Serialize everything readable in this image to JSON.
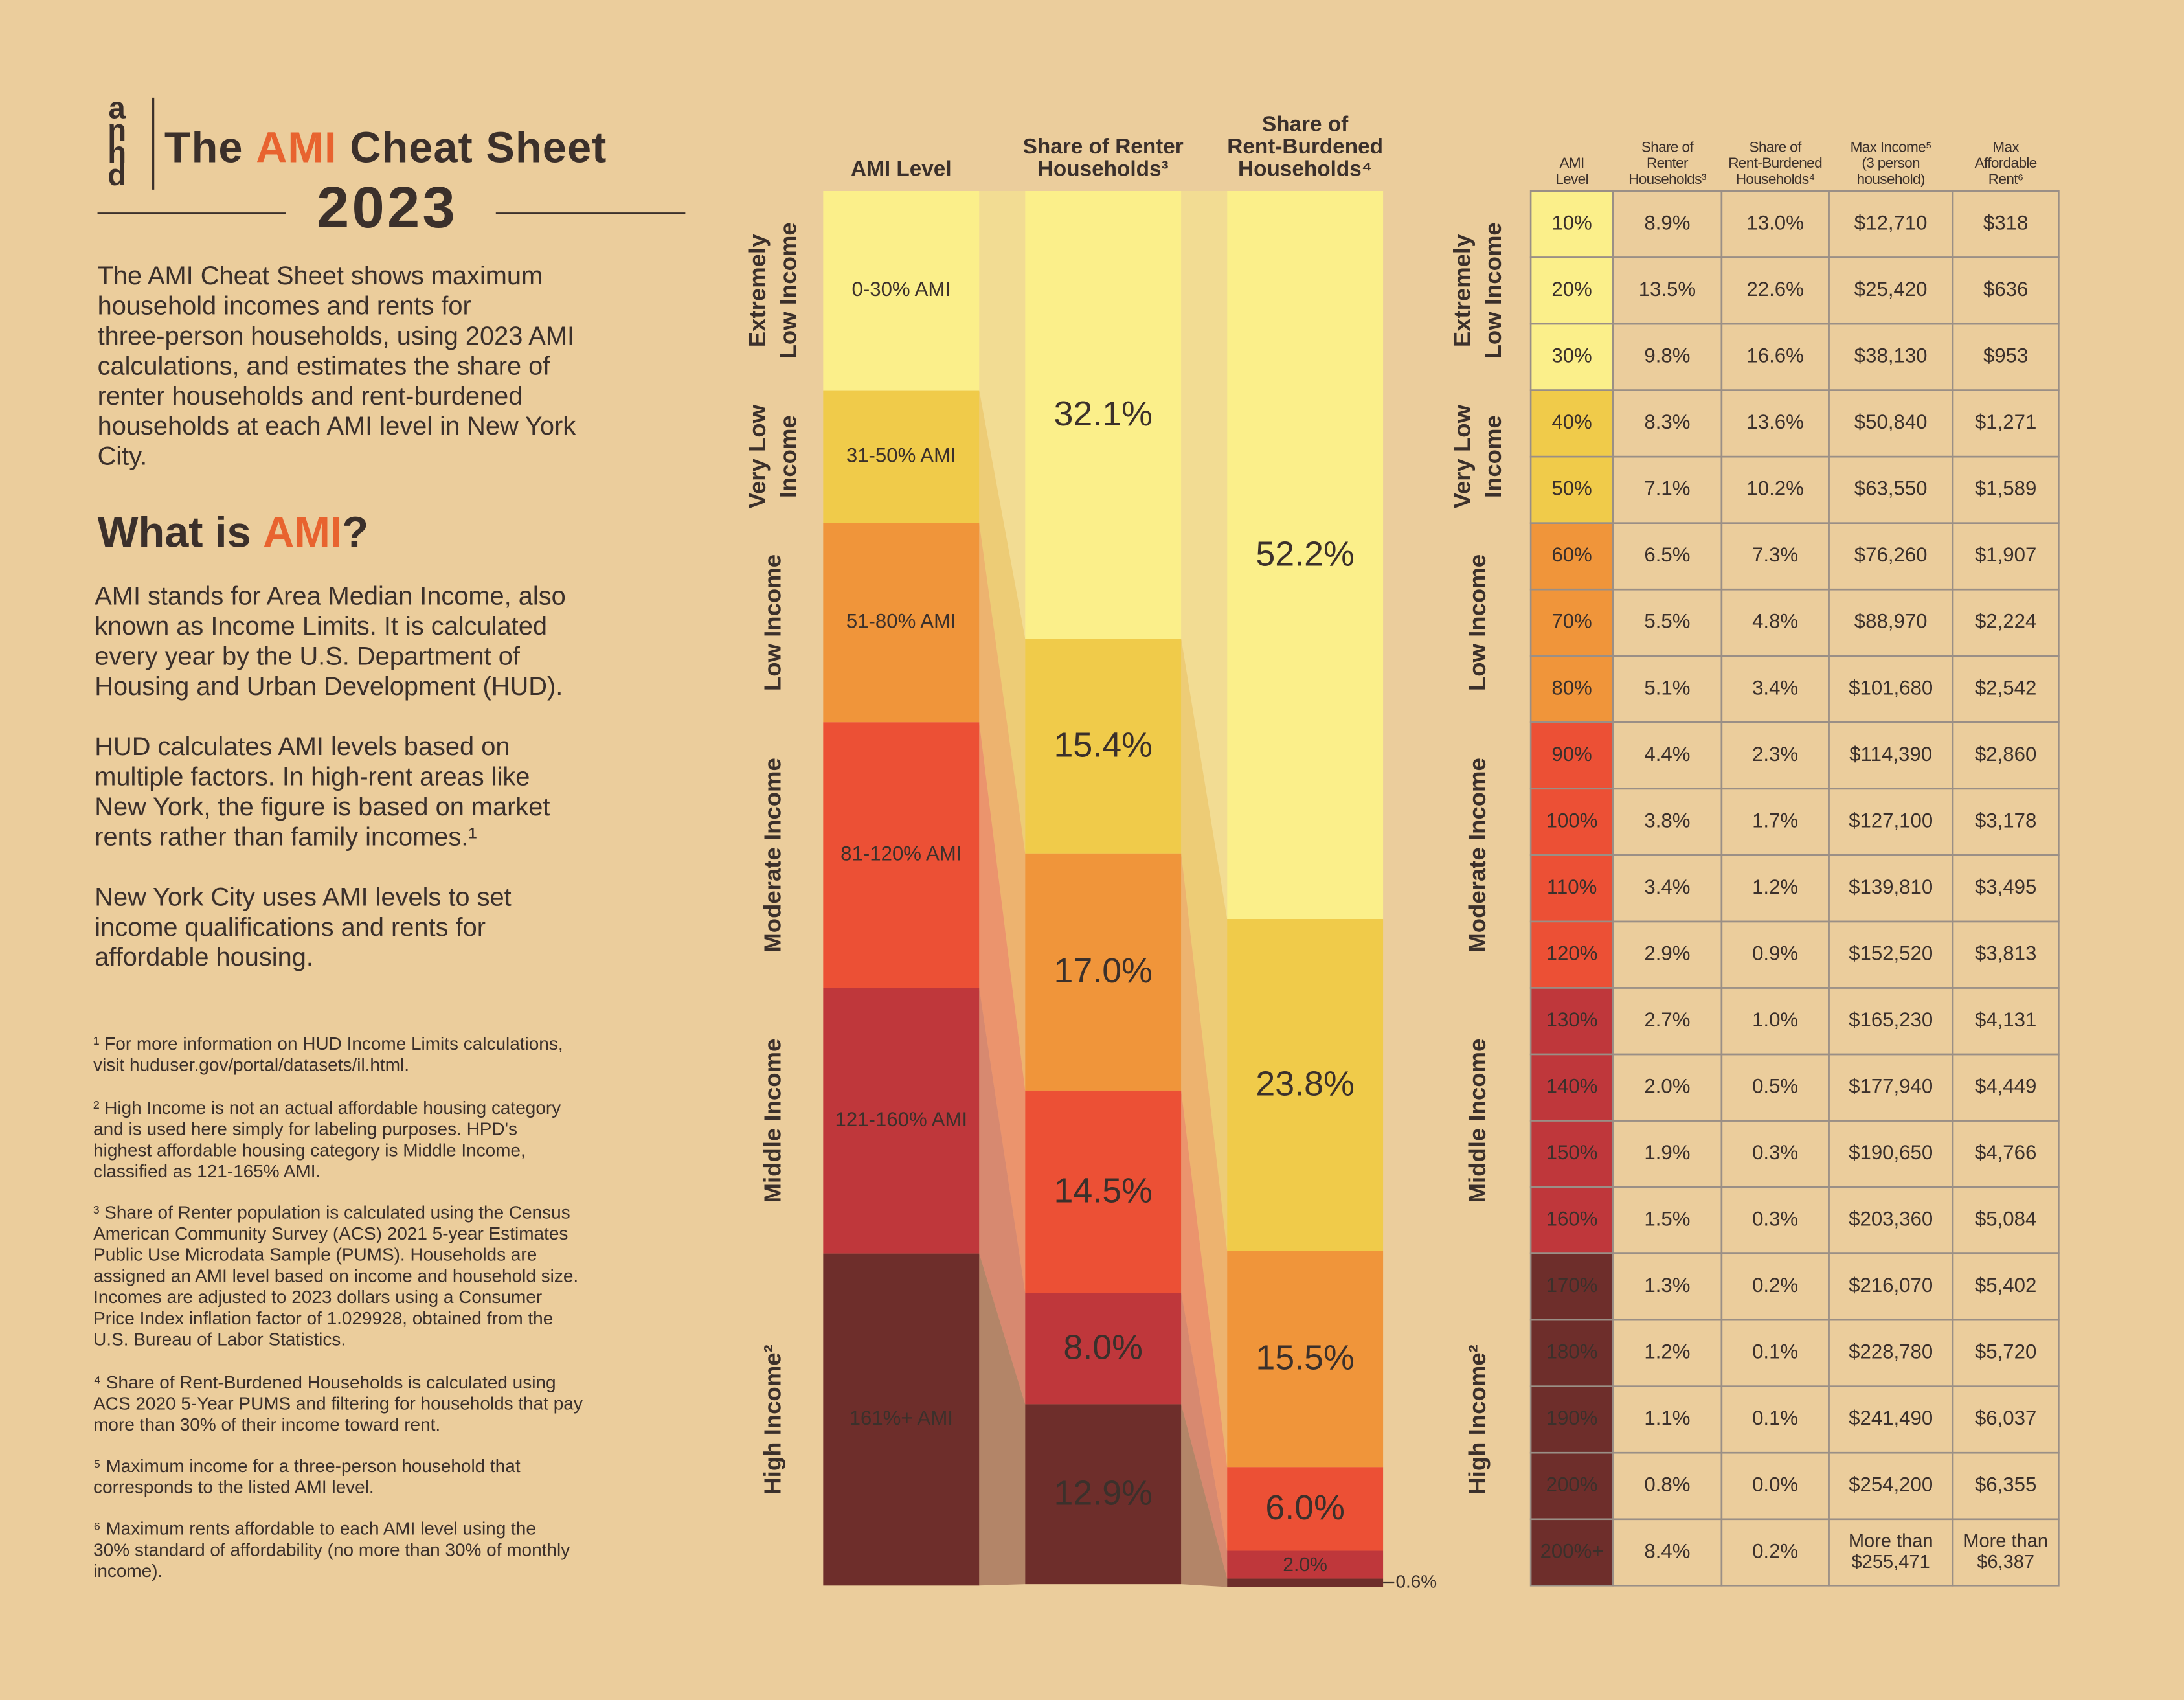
{
  "header": {
    "logo": [
      "a",
      "n",
      "h",
      "d"
    ],
    "title": [
      "The ",
      "AMI",
      " Cheat Sheet"
    ],
    "year": "2023"
  },
  "intro": [
    "The AMI Cheat Sheet shows maximum",
    "household incomes and rents for",
    "three-person households, using 2023 AMI",
    "calculations, and estimates the share of",
    "renter households and rent-burdened",
    "households at each AMI level in New York",
    "City."
  ],
  "what_is": {
    "heading": [
      "What is ",
      "AMI",
      "?"
    ],
    "paragraphs": [
      [
        "AMI stands for Area Median Income, also",
        "known as Income Limits. It is calculated",
        "every year by the U.S. Department of",
        "Housing and Urban Development (HUD)."
      ],
      [
        "HUD calculates AMI levels based on",
        "multiple factors. In high-rent areas like",
        "New York, the figure is based on market",
        "rents rather than family incomes.¹"
      ],
      [
        "New York City uses AMI levels to set",
        "income qualifications and rents for",
        "affordable housing."
      ]
    ]
  },
  "footnotes": [
    [
      "¹ For more information on HUD Income Limits calculations,",
      "visit huduser.gov/portal/datasets/il.html."
    ],
    [
      "² High Income is not an actual affordable housing category",
      "and is used here simply for labeling purposes. HPD's",
      "highest affordable housing category is Middle Income,",
      "classified as 121-165% AMI."
    ],
    [
      "³ Share of Renter population is calculated using the Census",
      "American Community Survey (ACS) 2021 5-year Estimates",
      "Public Use Microdata Sample (PUMS). Households are",
      "assigned an AMI level based on income and household size.",
      "Incomes are adjusted to 2023 dollars using a Consumer",
      "Price Index inflation factor of 1.029928, obtained from the",
      "U.S. Bureau of Labor Statistics."
    ],
    [
      "⁴ Share of Rent-Burdened Households is calculated using",
      "ACS 2020 5-Year PUMS and filtering for households that pay",
      "more than 30% of their income toward rent."
    ],
    [
      "⁵ Maximum income for a three-person household that",
      "corresponds to the listed AMI level."
    ],
    [
      "⁶ Maximum rents affordable to each AMI level using the",
      "30% standard of affordability (no more than 30% of monthly",
      "income)."
    ]
  ],
  "chart": {
    "headers": [
      [
        "AMI Level"
      ],
      [
        "Share of Renter",
        "Households³"
      ],
      [
        "Share of",
        "Rent-Burdened",
        "Households⁴"
      ]
    ],
    "groups": [
      [
        "Extremely",
        "Low Income"
      ],
      [
        "Very Low",
        "Income"
      ],
      [
        "Low Income"
      ],
      [
        "Moderate Income"
      ],
      [
        "Middle Income"
      ],
      [
        "High Income²"
      ]
    ],
    "ami_bands": [
      "0-30% AMI",
      "31-50% AMI",
      "51-80% AMI",
      "81-120% AMI",
      "121-160% AMI",
      "161%+ AMI"
    ],
    "colors": [
      "#fbef8a",
      "#f0cb4a",
      "#f0953a",
      "#ec5035",
      "#bf373b",
      "#6e2e2b"
    ],
    "renter_share": {
      "values": [
        32.1,
        15.4,
        17.0,
        14.5,
        8.0,
        12.9
      ],
      "value_labels": [
        "32.1%",
        "15.4%",
        "17.0%",
        "14.5%",
        "8.0%",
        "12.9%"
      ]
    },
    "burdened_share": {
      "values": [
        52.2,
        23.8,
        15.5,
        6.0,
        2.0,
        0.6
      ],
      "value_labels": [
        "52.2%",
        "23.8%",
        "15.5%",
        "6.0%",
        "2.0%",
        "0.6%"
      ]
    }
  },
  "table": {
    "header": [
      [
        "AMI",
        "Level"
      ],
      [
        "Share of",
        "Renter",
        "Households³"
      ],
      [
        "Share of",
        "Rent-Burdened",
        "Households⁴"
      ],
      [
        "Max Income⁵",
        "(3 person",
        "household)"
      ],
      [
        "Max",
        "Affordable",
        "Rent⁶"
      ]
    ],
    "rows": [
      [
        "10%",
        "8.9%",
        "13.0%",
        "$12,710",
        "$318"
      ],
      [
        "20%",
        "13.5%",
        "22.6%",
        "$25,420",
        "$636"
      ],
      [
        "30%",
        "9.8%",
        "16.6%",
        "$38,130",
        "$953"
      ],
      [
        "40%",
        "8.3%",
        "13.6%",
        "$50,840",
        "$1,271"
      ],
      [
        "50%",
        "7.1%",
        "10.2%",
        "$63,550",
        "$1,589"
      ],
      [
        "60%",
        "6.5%",
        "7.3%",
        "$76,260",
        "$1,907"
      ],
      [
        "70%",
        "5.5%",
        "4.8%",
        "$88,970",
        "$2,224"
      ],
      [
        "80%",
        "5.1%",
        "3.4%",
        "$101,680",
        "$2,542"
      ],
      [
        "90%",
        "4.4%",
        "2.3%",
        "$114,390",
        "$2,860"
      ],
      [
        "100%",
        "3.8%",
        "1.7%",
        "$127,100",
        "$3,178"
      ],
      [
        "110%",
        "3.4%",
        "1.2%",
        "$139,810",
        "$3,495"
      ],
      [
        "120%",
        "2.9%",
        "0.9%",
        "$152,520",
        "$3,813"
      ],
      [
        "130%",
        "2.7%",
        "1.0%",
        "$165,230",
        "$4,131"
      ],
      [
        "140%",
        "2.0%",
        "0.5%",
        "$177,940",
        "$4,449"
      ],
      [
        "150%",
        "1.9%",
        "0.3%",
        "$190,650",
        "$4,766"
      ],
      [
        "160%",
        "1.5%",
        "0.3%",
        "$203,360",
        "$5,084"
      ],
      [
        "170%",
        "1.3%",
        "0.2%",
        "$216,070",
        "$5,402"
      ],
      [
        "180%",
        "1.2%",
        "0.1%",
        "$228,780",
        "$5,720"
      ],
      [
        "190%",
        "1.1%",
        "0.1%",
        "$241,490",
        "$6,037"
      ],
      [
        "200%",
        "0.8%",
        "0.0%",
        "$254,200",
        "$6,355"
      ],
      [
        "200%+",
        "8.4%",
        "0.2%",
        [
          "More than",
          "$255,471"
        ],
        [
          "More than",
          "$6,387"
        ]
      ]
    ]
  }
}
